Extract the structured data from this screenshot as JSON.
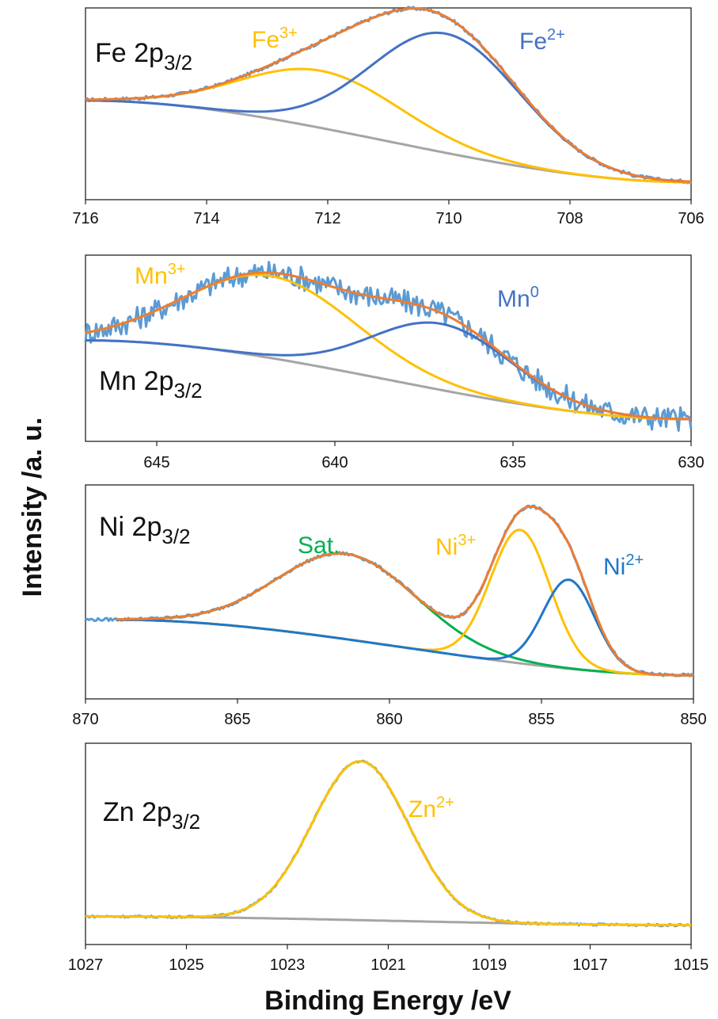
{
  "figure": {
    "ylabel": "Intensity /a. u.",
    "xlabel": "Binding Energy /eV"
  },
  "colors": {
    "raw": "#5B9BD5",
    "fit": "#ED7D31",
    "background": "#A5A5A5",
    "yellow": "#FFC000",
    "blue": "#4472C4",
    "blue2": "#1F77C8",
    "green": "#00B050"
  },
  "chart_data": [
    {
      "type": "line",
      "panel_label": {
        "base": "Fe 2p",
        "sub": "3/2"
      },
      "xlim": [
        716,
        706
      ],
      "x_ticks": [
        716,
        714,
        712,
        710,
        708,
        706
      ],
      "raw_noise": 0.01,
      "baseline": {
        "x": [
          716,
          706
        ],
        "y": [
          0.52,
          0.02
        ]
      },
      "peaks": [
        {
          "name": "Fe³⁺",
          "label_base": "Fe",
          "label_sup": "3+",
          "color": "#FFC000",
          "center": 712.1,
          "height": 0.35,
          "fwhm": 3.1
        },
        {
          "name": "Fe²⁺",
          "label_base": "Fe",
          "label_sup": "2+",
          "color": "#4472C4",
          "center": 710.05,
          "height": 0.73,
          "fwhm": 2.9
        }
      ],
      "peak_overall_max_label": "",
      "series": [
        {
          "name": "Raw",
          "color": "#5B9BD5"
        },
        {
          "name": "Fit",
          "color": "#ED7D31"
        },
        {
          "name": "Background",
          "color": "#A5A5A5"
        }
      ]
    },
    {
      "type": "line",
      "panel_label": {
        "base": "Mn 2p",
        "sub": "3/2"
      },
      "xlim": [
        647,
        630
      ],
      "x_ticks": [
        645,
        640,
        635,
        630
      ],
      "raw_noise": 0.035,
      "baseline": {
        "x": [
          647,
          630
        ],
        "y": [
          0.55,
          0.05
        ]
      },
      "peaks": [
        {
          "name": "Mn³⁺",
          "label_base": "Mn",
          "label_sup": "3+",
          "color": "#FFC000",
          "center": 641.8,
          "height": 0.52,
          "fwhm": 5.6
        },
        {
          "name": "Mn⁰",
          "label_base": "Mn",
          "label_sup": "0",
          "color": "#4472C4",
          "center": 637.0,
          "height": 0.42,
          "fwhm": 4.6
        }
      ],
      "series": [
        {
          "name": "Raw",
          "color": "#5B9BD5"
        },
        {
          "name": "Fit",
          "color": "#ED7D31"
        },
        {
          "name": "Background",
          "color": "#A5A5A5"
        }
      ]
    },
    {
      "type": "line",
      "panel_label": {
        "base": "Ni 2p",
        "sub": "3/2"
      },
      "xlim": [
        870,
        850
      ],
      "x_ticks": [
        870,
        865,
        860,
        855,
        850
      ],
      "raw_noise": 0.008,
      "fit_start": 869,
      "baseline": {
        "x": [
          869,
          850
        ],
        "y": [
          0.35,
          0.05
        ]
      },
      "peaks": [
        {
          "name": "Sat.",
          "label_base": "Sat.",
          "label_sup": "",
          "color": "#00B050",
          "center": 861.4,
          "height": 0.46,
          "fwhm": 5.4
        },
        {
          "name": "Ni³⁺",
          "label_base": "Ni",
          "label_sup": "3+",
          "color": "#FFC000",
          "center": 855.7,
          "height": 0.72,
          "fwhm": 2.3
        },
        {
          "name": "Ni²⁺",
          "label_base": "Ni",
          "label_sup": "2+",
          "color": "#1F77C8",
          "center": 854.1,
          "height": 0.48,
          "fwhm": 2.0
        }
      ],
      "series": [
        {
          "name": "Raw",
          "color": "#5B9BD5"
        },
        {
          "name": "Fit",
          "color": "#ED7D31"
        },
        {
          "name": "Background",
          "color": "#A5A5A5"
        }
      ]
    },
    {
      "type": "line",
      "panel_label": {
        "base": "Zn 2p",
        "sub": "3/2"
      },
      "xlim": [
        1027,
        1015
      ],
      "x_ticks": [
        1027,
        1025,
        1023,
        1021,
        1019,
        1017,
        1015
      ],
      "raw_noise": 0.006,
      "baseline": {
        "x": [
          1027,
          1015
        ],
        "y": [
          0.08,
          0.03
        ]
      },
      "peaks": [
        {
          "name": "Zn²⁺",
          "label_base": "Zn",
          "label_sup": "2+",
          "color": "#FFC000",
          "center": 1021.55,
          "height": 0.92,
          "fwhm": 2.25
        }
      ],
      "series": [
        {
          "name": "Raw",
          "color": "#5B9BD5"
        },
        {
          "name": "Background",
          "color": "#A5A5A5"
        }
      ]
    }
  ]
}
